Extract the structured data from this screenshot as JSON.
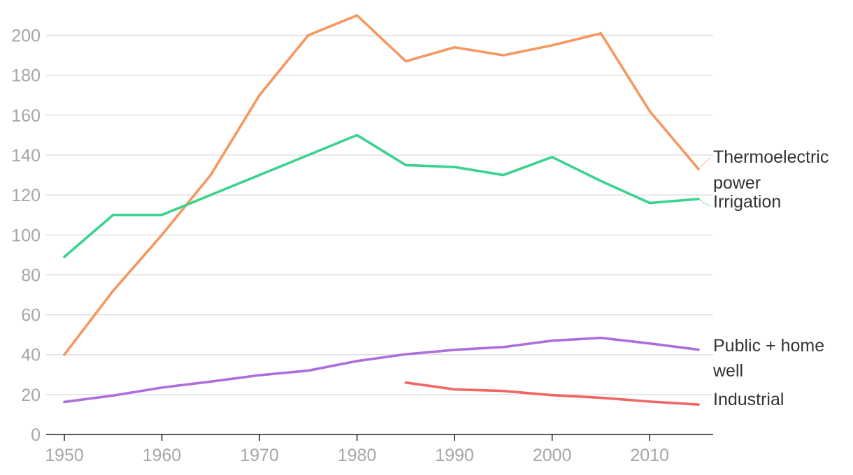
{
  "chart_data": {
    "type": "line",
    "title": "",
    "xlabel": "",
    "ylabel": "",
    "xlim": [
      1950,
      2015
    ],
    "ylim": [
      0,
      210
    ],
    "x_ticks": [
      1950,
      1960,
      1970,
      1980,
      1990,
      2000,
      2010
    ],
    "y_ticks": [
      0,
      20,
      40,
      60,
      80,
      100,
      120,
      140,
      160,
      180,
      200
    ],
    "grid": "horizontal",
    "legend": "direct labels at right end of lines",
    "series": [
      {
        "key": "thermo",
        "name": "Thermoelectric power",
        "label_lines": [
          "Thermoelectric",
          "power"
        ],
        "color": "#f6975f",
        "x": [
          1950,
          1955,
          1960,
          1965,
          1970,
          1975,
          1980,
          1985,
          1990,
          1995,
          2000,
          2005,
          2010,
          2015
        ],
        "y": [
          40,
          72,
          100,
          130,
          170,
          200,
          210,
          187,
          194,
          190,
          195,
          201,
          162,
          133
        ]
      },
      {
        "key": "irrigation",
        "name": "Irrigation",
        "label_lines": [
          "Irrigation"
        ],
        "color": "#3ad38d",
        "x": [
          1950,
          1955,
          1960,
          1965,
          1970,
          1975,
          1980,
          1985,
          1990,
          1995,
          2000,
          2005,
          2010,
          2015
        ],
        "y": [
          89,
          110,
          110,
          120,
          130,
          140,
          150,
          135,
          134,
          130,
          139,
          127,
          116,
          118
        ]
      },
      {
        "key": "public",
        "name": "Public + home well",
        "label_lines": [
          "Public + home",
          "well"
        ],
        "color": "#ab6fdc",
        "x": [
          1950,
          1955,
          1960,
          1965,
          1970,
          1975,
          1980,
          1985,
          1990,
          1995,
          2000,
          2005,
          2010,
          2015
        ],
        "y": [
          16.3,
          19.5,
          23.5,
          26.5,
          29.7,
          32,
          36.8,
          40.2,
          42.4,
          43.8,
          47,
          48.4,
          45.6,
          42.5
        ]
      },
      {
        "key": "industrial",
        "name": "Industrial",
        "label_lines": [
          "Industrial"
        ],
        "color": "#f26565",
        "x": [
          1985,
          1990,
          1995,
          2000,
          2005,
          2010,
          2015
        ],
        "y": [
          26,
          22.6,
          21.8,
          19.7,
          18.4,
          16.5,
          15
        ]
      }
    ]
  }
}
